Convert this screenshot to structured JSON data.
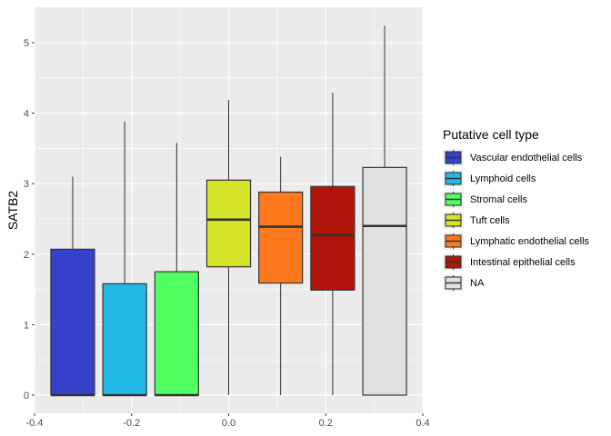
{
  "chart_data": {
    "type": "box",
    "xlabel": "",
    "ylabel": "SATB2",
    "xlim": [
      -0.4,
      0.4
    ],
    "ylim": [
      0,
      5.5
    ],
    "x_ticks": [
      -0.4,
      -0.2,
      0.0,
      0.2,
      0.4
    ],
    "x_tick_labels": [
      "-0.4",
      "-0.2",
      "0.0",
      "0.2",
      "0.4"
    ],
    "y_ticks": [
      0,
      1,
      2,
      3,
      4,
      5
    ],
    "y_tick_labels": [
      "0",
      "1",
      "2",
      "3",
      "4",
      "5"
    ],
    "grid": true,
    "legend": {
      "title": "Putative cell type",
      "position": "right"
    },
    "series": [
      {
        "name": "Vascular endothelial cells",
        "color": "#3541c8",
        "x": -0.3214,
        "whisker_low": 0,
        "q1": 0,
        "median": 0,
        "q3": 2.07,
        "whisker_high": 3.1
      },
      {
        "name": "Lymphoid cells",
        "color": "#22b8e4",
        "x": -0.2143,
        "whisker_low": 0,
        "q1": 0,
        "median": 0,
        "q3": 1.58,
        "whisker_high": 3.88
      },
      {
        "name": "Stromal cells",
        "color": "#52ff63",
        "x": -0.1071,
        "whisker_low": 0,
        "q1": 0,
        "median": 0,
        "q3": 1.75,
        "whisker_high": 3.58
      },
      {
        "name": "Tuft cells",
        "color": "#d4e428",
        "x": 0.0,
        "whisker_low": 0,
        "q1": 1.82,
        "median": 2.49,
        "q3": 3.05,
        "whisker_high": 4.19
      },
      {
        "name": "Lymphatic endothelial cells",
        "color": "#fc7a1d",
        "x": 0.1071,
        "whisker_low": 0,
        "q1": 1.59,
        "median": 2.39,
        "q3": 2.88,
        "whisker_high": 3.38
      },
      {
        "name": "Intestinal epithelial cells",
        "color": "#b3150b",
        "x": 0.2143,
        "whisker_low": 0,
        "q1": 1.49,
        "median": 2.27,
        "q3": 2.96,
        "whisker_high": 4.29
      },
      {
        "name": "NA",
        "color": "#e0e0e0",
        "x": 0.3214,
        "whisker_low": 0,
        "q1": 0,
        "median": 2.4,
        "q3": 3.23,
        "whisker_high": 5.24
      }
    ]
  }
}
